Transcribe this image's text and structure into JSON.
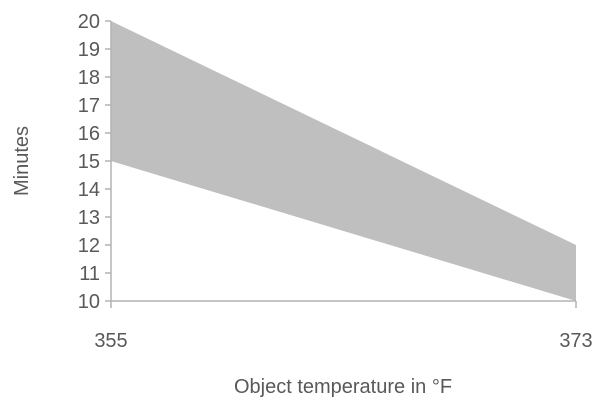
{
  "chart_data": {
    "type": "area",
    "x": [
      355,
      373
    ],
    "series": [
      {
        "values_lower": [
          15,
          10
        ],
        "values_upper": [
          20,
          12
        ]
      }
    ],
    "xlabel": "Object temperature in °F",
    "ylabel": "Minutes",
    "xlim": [
      355,
      373
    ],
    "ylim": [
      10,
      20
    ],
    "x_ticks": [
      "355",
      "373"
    ],
    "y_ticks": [
      "10",
      "11",
      "12",
      "13",
      "14",
      "15",
      "16",
      "17",
      "18",
      "19",
      "20"
    ],
    "grid": false,
    "colors": {
      "band": "#bfbfbf",
      "axis": "#b3b3b3",
      "text": "#595959"
    }
  }
}
